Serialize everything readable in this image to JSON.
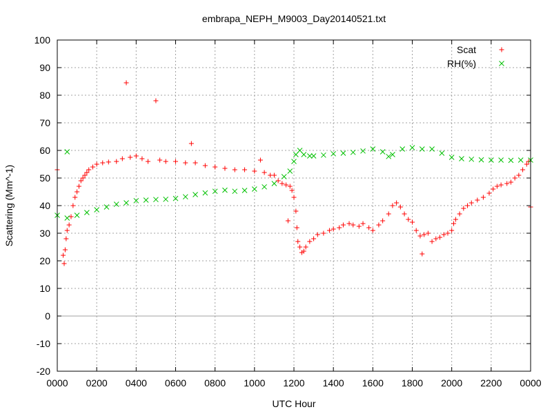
{
  "colors": {
    "scat": "#ff0000",
    "rh": "#00c000",
    "grid": "#a0a0a0",
    "zero_line": "#a0a0a0",
    "frame": "#000000"
  },
  "chart_data": {
    "type": "scatter",
    "title": "embrapa_NEPH_M9003_Day20140521.txt",
    "xlabel": "UTC Hour",
    "ylabel": "Scattering (Mm^-1)",
    "xlim": [
      0,
      24
    ],
    "ylim": [
      -20,
      100
    ],
    "grid": true,
    "legend_position": "top-right",
    "x_ticks": [
      {
        "v": 0,
        "label": "0000"
      },
      {
        "v": 2,
        "label": "0200"
      },
      {
        "v": 4,
        "label": "0400"
      },
      {
        "v": 6,
        "label": "0600"
      },
      {
        "v": 8,
        "label": "0800"
      },
      {
        "v": 10,
        "label": "1000"
      },
      {
        "v": 12,
        "label": "1200"
      },
      {
        "v": 14,
        "label": "1400"
      },
      {
        "v": 16,
        "label": "1600"
      },
      {
        "v": 18,
        "label": "1800"
      },
      {
        "v": 20,
        "label": "2000"
      },
      {
        "v": 22,
        "label": "2200"
      },
      {
        "v": 24,
        "label": "0000"
      }
    ],
    "y_ticks": [
      {
        "v": -20,
        "label": "-20"
      },
      {
        "v": -10,
        "label": "-10"
      },
      {
        "v": 0,
        "label": "0"
      },
      {
        "v": 10,
        "label": "10"
      },
      {
        "v": 20,
        "label": "20"
      },
      {
        "v": 30,
        "label": "30"
      },
      {
        "v": 40,
        "label": "40"
      },
      {
        "v": 50,
        "label": "50"
      },
      {
        "v": 60,
        "label": "60"
      },
      {
        "v": 70,
        "label": "70"
      },
      {
        "v": 80,
        "label": "80"
      },
      {
        "v": 90,
        "label": "90"
      },
      {
        "v": 100,
        "label": "100"
      }
    ],
    "series": [
      {
        "name": "Scat",
        "marker": "plus",
        "color": "#ff0000",
        "points": [
          [
            0.0,
            53.0
          ],
          [
            0.3,
            22.0
          ],
          [
            0.35,
            19.0
          ],
          [
            0.4,
            24.0
          ],
          [
            0.45,
            28.0
          ],
          [
            0.5,
            31.0
          ],
          [
            0.6,
            33.0
          ],
          [
            0.7,
            36.0
          ],
          [
            0.8,
            40.0
          ],
          [
            0.9,
            43.0
          ],
          [
            1.0,
            45.0
          ],
          [
            1.1,
            47.0
          ],
          [
            1.2,
            49.0
          ],
          [
            1.3,
            50.0
          ],
          [
            1.4,
            51.0
          ],
          [
            1.5,
            52.0
          ],
          [
            1.6,
            53.0
          ],
          [
            1.8,
            54.0
          ],
          [
            2.0,
            55.0
          ],
          [
            2.3,
            55.5
          ],
          [
            2.6,
            55.8
          ],
          [
            3.0,
            56.0
          ],
          [
            3.3,
            57.0
          ],
          [
            3.5,
            84.5
          ],
          [
            3.7,
            57.5
          ],
          [
            4.0,
            58.0
          ],
          [
            4.3,
            57.0
          ],
          [
            4.6,
            56.0
          ],
          [
            5.0,
            78.0
          ],
          [
            5.2,
            56.5
          ],
          [
            5.5,
            56.0
          ],
          [
            6.0,
            56.0
          ],
          [
            6.5,
            55.5
          ],
          [
            6.8,
            62.5
          ],
          [
            7.0,
            55.5
          ],
          [
            7.5,
            54.5
          ],
          [
            8.0,
            54.0
          ],
          [
            8.5,
            53.5
          ],
          [
            9.0,
            53.0
          ],
          [
            9.5,
            53.0
          ],
          [
            10.0,
            52.5
          ],
          [
            10.3,
            56.5
          ],
          [
            10.5,
            52.0
          ],
          [
            10.8,
            51.0
          ],
          [
            11.0,
            51.0
          ],
          [
            11.2,
            49.0
          ],
          [
            11.4,
            48.0
          ],
          [
            11.6,
            47.5
          ],
          [
            11.7,
            34.5
          ],
          [
            11.8,
            47.0
          ],
          [
            11.9,
            45.5
          ],
          [
            12.0,
            43.0
          ],
          [
            12.1,
            38.0
          ],
          [
            12.15,
            32.0
          ],
          [
            12.2,
            27.0
          ],
          [
            12.3,
            25.0
          ],
          [
            12.4,
            23.0
          ],
          [
            12.5,
            23.5
          ],
          [
            12.6,
            25.0
          ],
          [
            12.8,
            27.0
          ],
          [
            13.0,
            28.0
          ],
          [
            13.2,
            29.5
          ],
          [
            13.5,
            30.0
          ],
          [
            13.8,
            31.0
          ],
          [
            14.0,
            31.5
          ],
          [
            14.3,
            32.0
          ],
          [
            14.5,
            33.0
          ],
          [
            14.8,
            33.5
          ],
          [
            15.0,
            33.0
          ],
          [
            15.3,
            32.5
          ],
          [
            15.5,
            33.5
          ],
          [
            15.8,
            32.0
          ],
          [
            16.0,
            31.0
          ],
          [
            16.3,
            33.0
          ],
          [
            16.5,
            34.5
          ],
          [
            16.8,
            37.0
          ],
          [
            17.0,
            40.0
          ],
          [
            17.2,
            41.0
          ],
          [
            17.4,
            39.5
          ],
          [
            17.6,
            37.0
          ],
          [
            17.8,
            35.0
          ],
          [
            18.0,
            34.0
          ],
          [
            18.2,
            31.0
          ],
          [
            18.4,
            29.0
          ],
          [
            18.5,
            22.5
          ],
          [
            18.6,
            29.5
          ],
          [
            18.8,
            30.0
          ],
          [
            19.0,
            27.0
          ],
          [
            19.2,
            28.0
          ],
          [
            19.4,
            28.5
          ],
          [
            19.6,
            29.5
          ],
          [
            19.8,
            30.0
          ],
          [
            20.0,
            31.0
          ],
          [
            20.1,
            33.5
          ],
          [
            20.2,
            35.0
          ],
          [
            20.4,
            37.0
          ],
          [
            20.6,
            39.0
          ],
          [
            20.8,
            40.0
          ],
          [
            21.0,
            41.0
          ],
          [
            21.3,
            42.0
          ],
          [
            21.6,
            43.0
          ],
          [
            21.9,
            44.5
          ],
          [
            22.1,
            46.0
          ],
          [
            22.3,
            47.0
          ],
          [
            22.5,
            47.5
          ],
          [
            22.8,
            48.0
          ],
          [
            23.0,
            48.5
          ],
          [
            23.2,
            50.0
          ],
          [
            23.4,
            51.0
          ],
          [
            23.6,
            53.0
          ],
          [
            23.8,
            55.0
          ],
          [
            23.9,
            56.0
          ],
          [
            24.0,
            39.5
          ]
        ]
      },
      {
        "name": "RH(%)",
        "marker": "cross",
        "color": "#00c000",
        "points": [
          [
            0.0,
            36.5
          ],
          [
            0.5,
            59.5
          ],
          [
            0.5,
            35.5
          ],
          [
            1.0,
            36.5
          ],
          [
            1.5,
            37.5
          ],
          [
            2.0,
            38.5
          ],
          [
            2.5,
            39.5
          ],
          [
            3.0,
            40.5
          ],
          [
            3.5,
            41.0
          ],
          [
            4.0,
            41.8
          ],
          [
            4.5,
            42.0
          ],
          [
            5.0,
            42.2
          ],
          [
            5.5,
            42.3
          ],
          [
            6.0,
            42.6
          ],
          [
            6.5,
            43.2
          ],
          [
            7.0,
            44.0
          ],
          [
            7.5,
            44.6
          ],
          [
            8.0,
            45.2
          ],
          [
            8.5,
            45.6
          ],
          [
            9.0,
            45.2
          ],
          [
            9.5,
            45.5
          ],
          [
            10.0,
            46.0
          ],
          [
            10.5,
            46.8
          ],
          [
            11.0,
            48.0
          ],
          [
            11.5,
            50.5
          ],
          [
            11.8,
            52.5
          ],
          [
            12.0,
            56.0
          ],
          [
            12.1,
            58.5
          ],
          [
            12.3,
            60.0
          ],
          [
            12.5,
            58.5
          ],
          [
            12.8,
            58.0
          ],
          [
            13.0,
            58.0
          ],
          [
            13.5,
            58.3
          ],
          [
            14.0,
            58.8
          ],
          [
            14.5,
            59.0
          ],
          [
            15.0,
            59.3
          ],
          [
            15.5,
            59.8
          ],
          [
            16.0,
            60.5
          ],
          [
            16.5,
            59.5
          ],
          [
            16.8,
            57.8
          ],
          [
            17.0,
            58.5
          ],
          [
            17.5,
            60.5
          ],
          [
            18.0,
            61.0
          ],
          [
            18.5,
            60.5
          ],
          [
            19.0,
            60.5
          ],
          [
            19.5,
            59.0
          ],
          [
            20.0,
            57.5
          ],
          [
            20.5,
            57.0
          ],
          [
            21.0,
            56.8
          ],
          [
            21.5,
            56.6
          ],
          [
            22.0,
            56.5
          ],
          [
            22.5,
            56.5
          ],
          [
            23.0,
            56.4
          ],
          [
            23.5,
            56.5
          ],
          [
            24.0,
            56.5
          ]
        ]
      }
    ]
  }
}
